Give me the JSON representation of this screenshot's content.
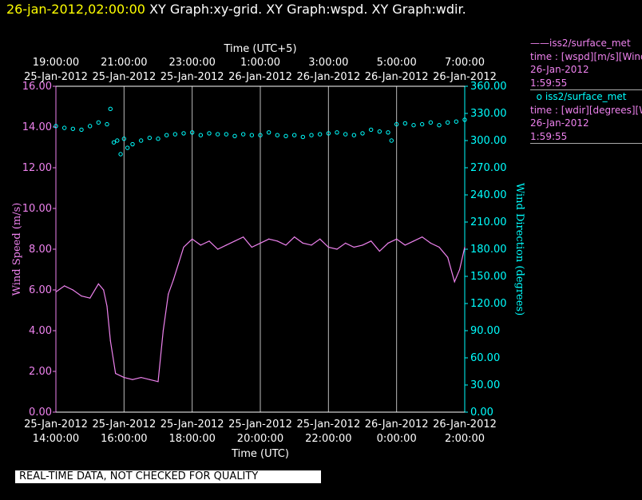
{
  "header": {
    "timestamp": "26-jan-2012,02:00:00",
    "graphs": "XY Graph:xy-grid.  XY Graph:wspd.  XY Graph:wdir."
  },
  "legend": [
    {
      "marker": "——",
      "name": "iss2/surface_met",
      "detail": "time : [wspd][m/s][Wind",
      "date": "26-Jan-2012",
      "time": "1:59:55",
      "color": "#ee82ee"
    },
    {
      "marker": "o",
      "name": "iss2/surface_met",
      "detail": "time : [wdir][degrees][W",
      "date": "26-Jan-2012",
      "time": "1:59:55",
      "color": "#00ffff"
    }
  ],
  "notice": "REAL-TIME DATA, NOT CHECKED FOR QUALITY",
  "chart_data": {
    "type": "line",
    "top_axis_title": "Time (UTC+5)",
    "bottom_axis_title": "Time (UTC)",
    "left_axis_title": "Wind Speed (m/s)",
    "right_axis_title": "Wind Direction (degrees)",
    "top_ticks": [
      {
        "time": "19:00:00",
        "date": "25-Jan-2012"
      },
      {
        "time": "21:00:00",
        "date": "25-Jan-2012"
      },
      {
        "time": "23:00:00",
        "date": "25-Jan-2012"
      },
      {
        "time": "1:00:00",
        "date": "26-Jan-2012"
      },
      {
        "time": "3:00:00",
        "date": "26-Jan-2012"
      },
      {
        "time": "5:00:00",
        "date": "26-Jan-2012"
      },
      {
        "time": "7:00:00",
        "date": "26-Jan-2012"
      }
    ],
    "bottom_ticks": [
      {
        "date": "25-Jan-2012",
        "time": "14:00:00"
      },
      {
        "date": "25-Jan-2012",
        "time": "16:00:00"
      },
      {
        "date": "25-Jan-2012",
        "time": "18:00:00"
      },
      {
        "date": "25-Jan-2012",
        "time": "20:00:00"
      },
      {
        "date": "25-Jan-2012",
        "time": "22:00:00"
      },
      {
        "date": "26-Jan-2012",
        "time": "0:00:00"
      },
      {
        "date": "26-Jan-2012",
        "time": "2:00:00"
      }
    ],
    "left_ticks": [
      "0.00",
      "2.00",
      "4.00",
      "6.00",
      "8.00",
      "10.00",
      "12.00",
      "14.00",
      "16.00"
    ],
    "right_ticks": [
      "0.00",
      "30.00",
      "60.00",
      "90.00",
      "120.00",
      "150.00",
      "180.00",
      "210.00",
      "240.00",
      "270.00",
      "300.00",
      "330.00",
      "360.00"
    ],
    "x_range_hours_utc": [
      14,
      26
    ],
    "left_range": [
      0,
      16
    ],
    "right_range": [
      0,
      360
    ],
    "grid": "vertical",
    "series": [
      {
        "name": "iss2/surface_met",
        "axis": "left",
        "style": "line",
        "color": "#ee82ee",
        "x": [
          14.0,
          14.25,
          14.5,
          14.75,
          15.0,
          15.25,
          15.4,
          15.5,
          15.6,
          15.75,
          16.0,
          16.25,
          16.5,
          16.75,
          17.0,
          17.15,
          17.3,
          17.45,
          17.6,
          17.75,
          18.0,
          18.25,
          18.5,
          18.75,
          19.0,
          19.25,
          19.5,
          19.75,
          20.0,
          20.25,
          20.5,
          20.75,
          21.0,
          21.25,
          21.5,
          21.75,
          22.0,
          22.25,
          22.5,
          22.75,
          23.0,
          23.25,
          23.5,
          23.75,
          24.0,
          24.25,
          24.5,
          24.75,
          25.0,
          25.25,
          25.5,
          25.7,
          25.85,
          26.0
        ],
        "values": [
          5.9,
          6.2,
          6.0,
          5.7,
          5.6,
          6.3,
          6.0,
          5.2,
          3.5,
          1.9,
          1.7,
          1.6,
          1.7,
          1.6,
          1.5,
          4.0,
          5.8,
          6.5,
          7.3,
          8.1,
          8.5,
          8.2,
          8.4,
          8.0,
          8.2,
          8.4,
          8.6,
          8.1,
          8.3,
          8.5,
          8.4,
          8.2,
          8.6,
          8.3,
          8.2,
          8.5,
          8.1,
          8.0,
          8.3,
          8.1,
          8.2,
          8.4,
          7.9,
          8.3,
          8.5,
          8.2,
          8.4,
          8.6,
          8.3,
          8.1,
          7.6,
          6.4,
          7.0,
          8.1
        ]
      },
      {
        "name": "iss2/surface_met",
        "axis": "right",
        "style": "scatter",
        "color": "#00ffff",
        "x": [
          14.0,
          14.25,
          14.5,
          14.75,
          15.0,
          15.25,
          15.5,
          15.6,
          15.7,
          15.8,
          15.9,
          16.0,
          16.1,
          16.25,
          16.5,
          16.75,
          17.0,
          17.25,
          17.5,
          17.75,
          18.0,
          18.25,
          18.5,
          18.75,
          19.0,
          19.25,
          19.5,
          19.75,
          20.0,
          20.25,
          20.5,
          20.75,
          21.0,
          21.25,
          21.5,
          21.75,
          22.0,
          22.25,
          22.5,
          22.75,
          23.0,
          23.25,
          23.5,
          23.75,
          23.85,
          24.0,
          24.25,
          24.5,
          24.75,
          25.0,
          25.25,
          25.5,
          25.75,
          26.0
        ],
        "values": [
          316,
          314,
          313,
          312,
          316,
          320,
          318,
          335,
          298,
          300,
          285,
          302,
          292,
          296,
          300,
          303,
          302,
          306,
          307,
          308,
          309,
          306,
          308,
          307,
          307,
          305,
          307,
          306,
          306,
          309,
          306,
          305,
          306,
          304,
          306,
          307,
          308,
          309,
          307,
          306,
          308,
          312,
          310,
          309,
          300,
          318,
          319,
          317,
          318,
          320,
          317,
          320,
          321,
          323
        ]
      }
    ]
  }
}
